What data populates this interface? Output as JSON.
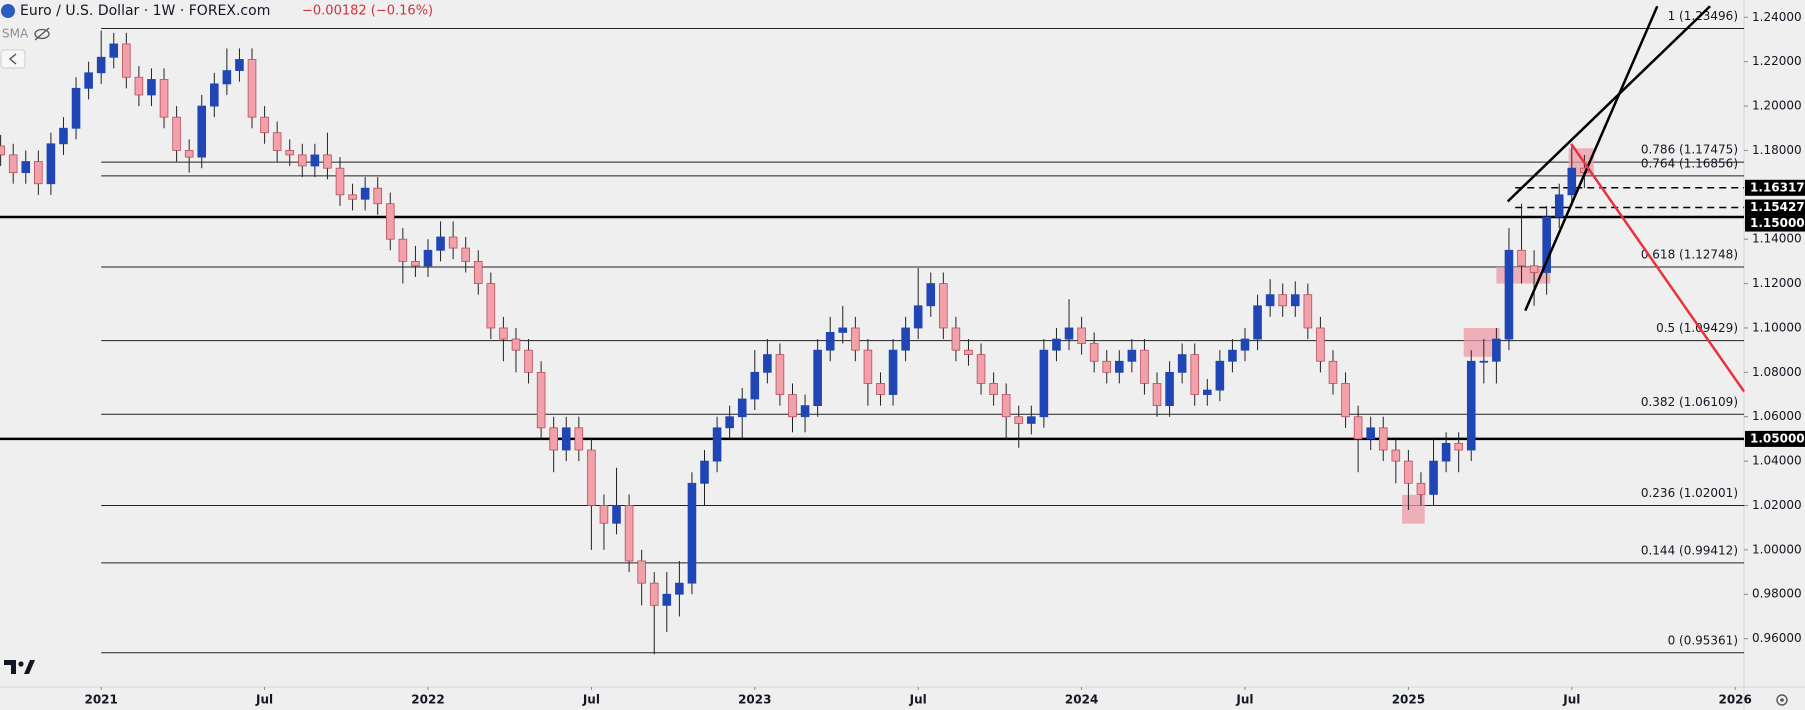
{
  "chart_data": {
    "type": "candlestick",
    "title": "Euro / U.S. Dollar · 1W · FOREX.com",
    "change": "−0.00182 (−0.16%)",
    "indicator": "SMA",
    "colors": {
      "up": "#1f46b4",
      "down": "#f2a0a9",
      "wick": "#222222",
      "line": "#000000",
      "badge": "#000000",
      "zone": "#ef9aa6"
    },
    "x": [
      -16,
      -14,
      -12,
      -10,
      -8,
      -6,
      -4,
      -2,
      0,
      2,
      4,
      6,
      8,
      10,
      12,
      14,
      16,
      18,
      20,
      22,
      24,
      26,
      28,
      30,
      32,
      34,
      36,
      38,
      40,
      42,
      44,
      46,
      48,
      50,
      52,
      54,
      56,
      58,
      60,
      62,
      64,
      66,
      68,
      70,
      72,
      74,
      76,
      78,
      80,
      82,
      84,
      86,
      88,
      90,
      92,
      94,
      96,
      98,
      100,
      102,
      104,
      106,
      108,
      110,
      112,
      114,
      116,
      118,
      120,
      122,
      124,
      126,
      128,
      130,
      132,
      134,
      136,
      138,
      140,
      142,
      144,
      146,
      148,
      150,
      152,
      154,
      156,
      158,
      160,
      162,
      164,
      166,
      168,
      170,
      172,
      174,
      176,
      178,
      180,
      182,
      184,
      186,
      188,
      190,
      192,
      194,
      196,
      198,
      200,
      202,
      204,
      206,
      208,
      210,
      212,
      214,
      216,
      218,
      220,
      222,
      224,
      226,
      228,
      230,
      232,
      234,
      236
    ],
    "open": [
      1.182,
      1.178,
      1.17,
      1.175,
      1.165,
      1.183,
      1.19,
      1.208,
      1.215,
      1.222,
      1.228,
      1.213,
      1.205,
      1.212,
      1.195,
      1.18,
      1.177,
      1.2,
      1.21,
      1.216,
      1.221,
      1.195,
      1.188,
      1.18,
      1.178,
      1.173,
      1.178,
      1.172,
      1.16,
      1.158,
      1.163,
      1.156,
      1.14,
      1.13,
      1.128,
      1.135,
      1.141,
      1.136,
      1.13,
      1.12,
      1.1,
      1.095,
      1.09,
      1.08,
      1.055,
      1.045,
      1.055,
      1.045,
      1.02,
      1.012,
      1.02,
      0.995,
      0.985,
      0.975,
      0.98,
      0.985,
      1.03,
      1.04,
      1.055,
      1.06,
      1.068,
      1.08,
      1.088,
      1.07,
      1.06,
      1.065,
      1.09,
      1.098,
      1.1,
      1.09,
      1.075,
      1.07,
      1.09,
      1.1,
      1.11,
      1.12,
      1.1,
      1.09,
      1.088,
      1.075,
      1.07,
      1.06,
      1.057,
      1.06,
      1.09,
      1.095,
      1.1,
      1.093,
      1.085,
      1.08,
      1.085,
      1.09,
      1.075,
      1.065,
      1.08,
      1.088,
      1.07,
      1.072,
      1.085,
      1.09,
      1.095,
      1.11,
      1.115,
      1.11,
      1.115,
      1.1,
      1.085,
      1.075,
      1.06,
      1.05,
      1.055,
      1.045,
      1.04,
      1.03,
      1.025,
      1.04,
      1.048,
      1.045,
      1.085,
      1.085,
      1.095,
      1.135,
      1.128,
      1.125,
      1.15,
      1.16,
      1.172
    ],
    "high": [
      1.187,
      1.183,
      1.18,
      1.18,
      1.188,
      1.195,
      1.213,
      1.22,
      1.234,
      1.233,
      1.233,
      1.218,
      1.217,
      1.217,
      1.2,
      1.185,
      1.205,
      1.215,
      1.226,
      1.226,
      1.226,
      1.2,
      1.193,
      1.185,
      1.183,
      1.183,
      1.188,
      1.177,
      1.165,
      1.168,
      1.168,
      1.161,
      1.145,
      1.137,
      1.14,
      1.148,
      1.148,
      1.141,
      1.135,
      1.125,
      1.105,
      1.1,
      1.095,
      1.085,
      1.06,
      1.06,
      1.06,
      1.05,
      1.025,
      1.037,
      1.025,
      1.0,
      0.99,
      0.99,
      0.995,
      1.035,
      1.045,
      1.06,
      1.065,
      1.073,
      1.09,
      1.095,
      1.093,
      1.075,
      1.07,
      1.095,
      1.105,
      1.11,
      1.105,
      1.095,
      1.08,
      1.095,
      1.105,
      1.127,
      1.125,
      1.125,
      1.105,
      1.095,
      1.093,
      1.08,
      1.075,
      1.065,
      1.065,
      1.095,
      1.1,
      1.113,
      1.105,
      1.098,
      1.09,
      1.09,
      1.095,
      1.095,
      1.08,
      1.085,
      1.093,
      1.093,
      1.077,
      1.09,
      1.095,
      1.1,
      1.115,
      1.122,
      1.12,
      1.121,
      1.12,
      1.105,
      1.09,
      1.08,
      1.065,
      1.06,
      1.06,
      1.05,
      1.045,
      1.035,
      1.05,
      1.053,
      1.053,
      1.09,
      1.095,
      1.1,
      1.145,
      1.156,
      1.135,
      1.155,
      1.165,
      1.183,
      1.178
    ],
    "low": [
      1.173,
      1.165,
      1.165,
      1.16,
      1.16,
      1.178,
      1.185,
      1.203,
      1.21,
      1.217,
      1.208,
      1.2,
      1.2,
      1.19,
      1.175,
      1.17,
      1.172,
      1.195,
      1.205,
      1.211,
      1.19,
      1.183,
      1.175,
      1.173,
      1.168,
      1.168,
      1.167,
      1.155,
      1.153,
      1.153,
      1.151,
      1.135,
      1.12,
      1.123,
      1.123,
      1.13,
      1.131,
      1.125,
      1.115,
      1.095,
      1.085,
      1.08,
      1.075,
      1.05,
      1.035,
      1.04,
      1.04,
      1.0,
      1.0,
      1.007,
      0.99,
      0.975,
      0.953,
      0.963,
      0.97,
      0.98,
      1.02,
      1.035,
      1.05,
      1.05,
      1.063,
      1.075,
      1.065,
      1.053,
      1.053,
      1.06,
      1.085,
      1.093,
      1.085,
      1.065,
      1.065,
      1.065,
      1.085,
      1.095,
      1.105,
      1.095,
      1.085,
      1.083,
      1.07,
      1.065,
      1.05,
      1.046,
      1.052,
      1.055,
      1.085,
      1.09,
      1.088,
      1.08,
      1.075,
      1.075,
      1.08,
      1.07,
      1.06,
      1.06,
      1.075,
      1.065,
      1.065,
      1.067,
      1.08,
      1.085,
      1.09,
      1.105,
      1.105,
      1.105,
      1.095,
      1.08,
      1.07,
      1.055,
      1.035,
      1.045,
      1.04,
      1.03,
      1.018,
      1.02,
      1.02,
      1.035,
      1.035,
      1.04,
      1.075,
      1.075,
      1.09,
      1.12,
      1.11,
      1.115,
      1.145,
      1.155,
      1.163
    ],
    "close": [
      1.178,
      1.17,
      1.175,
      1.165,
      1.183,
      1.19,
      1.208,
      1.215,
      1.222,
      1.228,
      1.213,
      1.205,
      1.212,
      1.195,
      1.18,
      1.177,
      1.2,
      1.21,
      1.216,
      1.221,
      1.195,
      1.188,
      1.18,
      1.178,
      1.173,
      1.178,
      1.172,
      1.16,
      1.158,
      1.163,
      1.156,
      1.14,
      1.13,
      1.128,
      1.135,
      1.141,
      1.136,
      1.13,
      1.12,
      1.1,
      1.095,
      1.09,
      1.08,
      1.055,
      1.045,
      1.055,
      1.045,
      1.02,
      1.012,
      1.02,
      0.995,
      0.985,
      0.975,
      0.98,
      0.985,
      1.03,
      1.04,
      1.055,
      1.06,
      1.068,
      1.08,
      1.088,
      1.07,
      1.06,
      1.065,
      1.09,
      1.098,
      1.1,
      1.09,
      1.075,
      1.07,
      1.09,
      1.1,
      1.11,
      1.12,
      1.1,
      1.09,
      1.088,
      1.075,
      1.07,
      1.06,
      1.057,
      1.06,
      1.09,
      1.095,
      1.1,
      1.093,
      1.085,
      1.08,
      1.085,
      1.09,
      1.075,
      1.065,
      1.08,
      1.088,
      1.07,
      1.072,
      1.085,
      1.09,
      1.095,
      1.11,
      1.115,
      1.11,
      1.115,
      1.1,
      1.085,
      1.075,
      1.06,
      1.05,
      1.055,
      1.045,
      1.04,
      1.03,
      1.025,
      1.04,
      1.048,
      1.045,
      1.085,
      1.085,
      1.095,
      1.135,
      1.128,
      1.125,
      1.15,
      1.16,
      1.172,
      1.17
    ],
    "xlim": [
      -16.1,
      261.4
    ],
    "xticks": [
      {
        "value": 0,
        "label": "2021"
      },
      {
        "value": 26,
        "label": "Jul"
      },
      {
        "value": 52,
        "label": "2022"
      },
      {
        "value": 78,
        "label": "Jul"
      },
      {
        "value": 104,
        "label": "2023"
      },
      {
        "value": 130,
        "label": "Jul"
      },
      {
        "value": 156,
        "label": "2024"
      },
      {
        "value": 182,
        "label": "Jul"
      },
      {
        "value": 208,
        "label": "2025"
      },
      {
        "value": 234,
        "label": "Jul"
      },
      {
        "value": 260,
        "label": "2026"
      }
    ],
    "ylim": [
      0.9382,
      1.2478
    ],
    "yticks": [
      {
        "value": 1.24,
        "label": "1.24000"
      },
      {
        "value": 1.22,
        "label": "1.22000"
      },
      {
        "value": 1.2,
        "label": "1.20000"
      },
      {
        "value": 1.18,
        "label": "1.18000"
      },
      {
        "value": 1.14,
        "label": "1.14000"
      },
      {
        "value": 1.12,
        "label": "1.12000"
      },
      {
        "value": 1.1,
        "label": "1.10000"
      },
      {
        "value": 1.08,
        "label": "1.08000"
      },
      {
        "value": 1.06,
        "label": "1.06000"
      },
      {
        "value": 1.04,
        "label": "1.04000"
      },
      {
        "value": 1.02,
        "label": "1.02000"
      },
      {
        "value": 1.0,
        "label": "1.00000"
      },
      {
        "value": 0.98,
        "label": "0.98000"
      },
      {
        "value": 0.96,
        "label": "0.96000"
      }
    ],
    "fib_start": 0,
    "fib_levels": [
      {
        "value": 1.23496,
        "label": "1 (1.23496)"
      },
      {
        "value": 1.17475,
        "label": "0.786 (1.17475)"
      },
      {
        "value": 1.16856,
        "label": "0.764 (1.16856)"
      },
      {
        "value": 1.12748,
        "label": "0.618 (1.12748)"
      },
      {
        "value": 1.09429,
        "label": "0.5 (1.09429)"
      },
      {
        "value": 1.06109,
        "label": "0.382 (1.06109)"
      },
      {
        "value": 1.02001,
        "label": "0.236 (1.02001)"
      },
      {
        "value": 0.99412,
        "label": "0.144 (0.99412)"
      },
      {
        "value": 0.95361,
        "label": "0 (0.95361)"
      }
    ],
    "price_lines": [
      {
        "value": 1.16317,
        "start": 225,
        "dashed": true
      },
      {
        "value": 1.15427,
        "start": 225,
        "dashed": true
      },
      {
        "value": 1.15,
        "label": "1.15000",
        "start": -16.1,
        "dashed": false
      },
      {
        "value": 1.05,
        "label": "1.05000",
        "start": -16.1,
        "dashed": false
      }
    ],
    "trendlines": [
      {
        "x": [
          223.8,
          256
        ],
        "y": [
          1.157,
          1.245
        ],
        "color": "#000000"
      },
      {
        "x": [
          226.6,
          247.6
        ],
        "y": [
          1.1078,
          1.245
        ],
        "color": "#000000"
      },
      {
        "x": [
          233.9,
          261.4
        ],
        "y": [
          1.183,
          1.0714
        ],
        "color": "#e8323f"
      }
    ],
    "zones": [
      {
        "x": [
          207,
          210.6
        ],
        "y": [
          1.0118,
          1.0248
        ]
      },
      {
        "x": [
          216.8,
          222.5
        ],
        "y": [
          1.087,
          1.1
        ]
      },
      {
        "x": [
          222,
          230.6
        ],
        "y": [
          1.12,
          1.1275
        ]
      },
      {
        "x": [
          233.5,
          237.5
        ],
        "y": [
          1.169,
          1.181
        ]
      }
    ]
  }
}
